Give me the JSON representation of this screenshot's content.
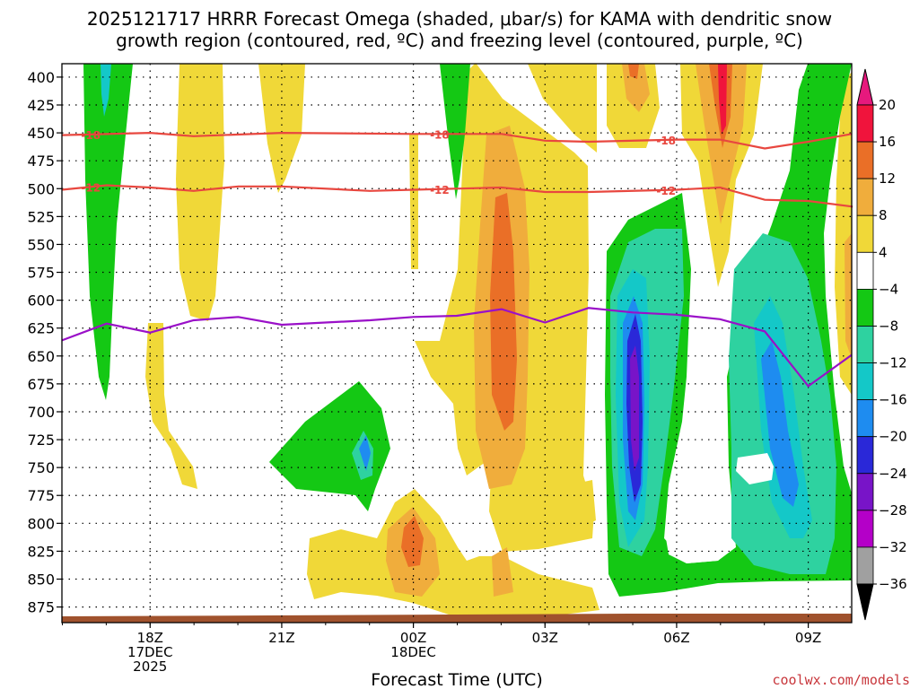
{
  "chart_data": {
    "type": "heatmap",
    "title_line1": "2025121717 HRRR Forecast Omega (shaded, μbar/s) for KAMA with dendritic snow",
    "title_line2": "growth region (contoured, red, ºC) and freezing level (contoured, purple, ºC)",
    "xlabel": "Forecast Time (UTC)",
    "credit": "coolwx.com/models",
    "x_range_hours": [
      17.33,
      23.33
    ],
    "pressure_range_hpa": [
      388,
      889
    ],
    "pressure_ticks": [
      400,
      425,
      450,
      475,
      500,
      525,
      550,
      575,
      600,
      625,
      650,
      675,
      700,
      725,
      750,
      775,
      800,
      825,
      850,
      875
    ],
    "x_ticks": [
      {
        "hour": 18,
        "lines": [
          "18Z",
          "17DEC",
          "2025"
        ]
      },
      {
        "hour": 19,
        "lines": [
          "21Z"
        ]
      },
      {
        "hour": 20,
        "lines": [
          "00Z",
          "18DEC"
        ]
      },
      {
        "hour": 21,
        "lines": [
          "03Z"
        ]
      },
      {
        "hour": 22,
        "lines": [
          "06Z"
        ]
      },
      {
        "hour": 23,
        "lines": [
          "09Z"
        ]
      }
    ],
    "colorbar": {
      "tick_labels": [
        "20",
        "16",
        "12",
        "8",
        "4",
        "−4",
        "−8",
        "−12",
        "−16",
        "−20",
        "−24",
        "−28",
        "−32",
        "−36"
      ],
      "colors_top_to_bottom": [
        "#f0143c",
        "#ea6f27",
        "#f0ad3c",
        "#f0d838",
        "#ffffff",
        "#14c814",
        "#2ed2a0",
        "#14c8c8",
        "#1e8cf0",
        "#2a28d8",
        "#7814c8",
        "#b400c8",
        "#a0a0a0"
      ],
      "top_arrow_color": "#e6197d",
      "bottom_arrow_color": "#000000"
    },
    "series": [
      {
        "name": "dendritic growth -18°C",
        "label": "-18",
        "color": "#e8473f",
        "points": [
          [
            17.33,
            452
          ],
          [
            18,
            450
          ],
          [
            18.33,
            453
          ],
          [
            19,
            450
          ],
          [
            20,
            451
          ],
          [
            20.67,
            451
          ],
          [
            21,
            457
          ],
          [
            21.33,
            458
          ],
          [
            22,
            456
          ],
          [
            22.33,
            456
          ],
          [
            22.67,
            464
          ],
          [
            23,
            458
          ],
          [
            23.33,
            451
          ]
        ]
      },
      {
        "name": "dendritic growth -12°C",
        "label": "-12",
        "color": "#e8473f",
        "points": [
          [
            17.33,
            501
          ],
          [
            17.67,
            497
          ],
          [
            18,
            499
          ],
          [
            18.33,
            502
          ],
          [
            18.67,
            498
          ],
          [
            19,
            498
          ],
          [
            19.67,
            502
          ],
          [
            20,
            501
          ],
          [
            20.67,
            499
          ],
          [
            21,
            503
          ],
          [
            21.33,
            503
          ],
          [
            22,
            501
          ],
          [
            22.33,
            499
          ],
          [
            22.67,
            510
          ],
          [
            23,
            511
          ],
          [
            23.33,
            516
          ],
          [
            23.33,
            517
          ]
        ]
      },
      {
        "name": "freezing level 0°C",
        "label": "",
        "color": "#9a10c8",
        "points": [
          [
            17.33,
            636
          ],
          [
            17.67,
            621
          ],
          [
            18,
            629
          ],
          [
            18.33,
            618
          ],
          [
            18.67,
            615
          ],
          [
            19,
            622
          ],
          [
            19.67,
            618
          ],
          [
            20,
            615
          ],
          [
            20.33,
            614
          ],
          [
            20.67,
            608
          ],
          [
            21,
            620
          ],
          [
            21.33,
            607
          ],
          [
            21.67,
            611
          ],
          [
            22,
            613
          ],
          [
            22.33,
            617
          ],
          [
            22.67,
            628
          ],
          [
            23,
            677
          ],
          [
            23.33,
            649
          ]
        ]
      }
    ],
    "omega_regions": [
      {
        "shade": "#f0d838",
        "value_range": "4 to 8",
        "hours": [
          18.3,
          18.67
        ],
        "pressure": [
          390,
          555
        ]
      },
      {
        "shade": "#f0d838",
        "value_range": "4 to 8",
        "hours": [
          20.2,
          21.17
        ],
        "pressure": [
          600,
          875
        ]
      },
      {
        "shade": "#ea6f27",
        "value_range": "12 to 16",
        "hours": [
          20.5,
          20.85
        ],
        "pressure": [
          760,
          855
        ]
      },
      {
        "shade": "#ea6f27",
        "value_range": "12 to 16",
        "hours": [
          20.8,
          21.4
        ],
        "pressure": [
          385,
          730
        ]
      },
      {
        "shade": "#14c814",
        "value_range": "-8 to -4",
        "hours": [
          17.5,
          17.9
        ],
        "pressure": [
          388,
          640
        ]
      },
      {
        "shade": "#14c814",
        "value_range": "-8 to -4",
        "hours": [
          19.3,
          20.15
        ],
        "pressure": [
          645,
          755
        ]
      },
      {
        "shade": "#2a28d8",
        "value_range": "-24 to -20",
        "hours": [
          21.6,
          22.25
        ],
        "pressure": [
          515,
          860
        ]
      },
      {
        "shade": "#14c814",
        "value_range": "-8 to -4",
        "hours": [
          22.6,
          23.33
        ],
        "pressure": [
          388,
          850
        ]
      },
      {
        "shade": "#f0143c",
        "value_range": "16 to 20",
        "hours": [
          22.3,
          22.66
        ],
        "pressure": [
          388,
          530
        ]
      }
    ]
  }
}
